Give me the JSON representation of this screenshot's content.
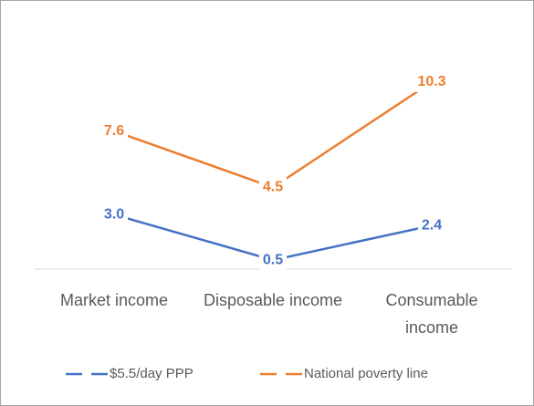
{
  "chart_data": {
    "type": "line",
    "categories": [
      "Market income",
      "Disposable income",
      "Consumable income"
    ],
    "series": [
      {
        "name": "$5.5/day PPP",
        "color": "#4472c4",
        "values": [
          3.0,
          0.5,
          2.4
        ],
        "value_labels": [
          "3.0",
          "0.5",
          "2.4"
        ]
      },
      {
        "name": "National poverty line",
        "color": "#ed7d31",
        "values": [
          7.6,
          4.5,
          10.3
        ],
        "value_labels": [
          "7.6",
          "4.5",
          "10.3"
        ]
      }
    ],
    "ylim": [
      0,
      12
    ]
  }
}
